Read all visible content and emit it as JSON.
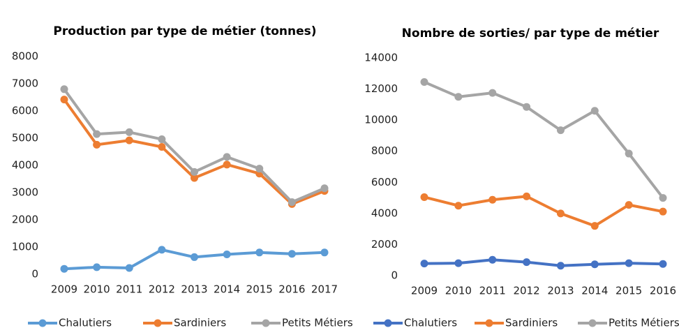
{
  "chart_data": [
    {
      "type": "line",
      "title": "Production par type de métier (tonnes)",
      "categories": [
        "2009",
        "2010",
        "2011",
        "2012",
        "2013",
        "2014",
        "2015",
        "2016",
        "2017"
      ],
      "series": [
        {
          "name": "Chalutiers",
          "color": "#5b9bd5",
          "values": [
            200,
            260,
            230,
            900,
            630,
            730,
            800,
            750,
            800
          ]
        },
        {
          "name": "Sardiniers",
          "color": "#ed7d31",
          "values": [
            6420,
            4760,
            4920,
            4680,
            3540,
            4030,
            3700,
            2580,
            3060
          ]
        },
        {
          "name": "Petits Métiers",
          "color": "#a5a5a5",
          "values": [
            6800,
            5150,
            5220,
            4960,
            3760,
            4310,
            3880,
            2650,
            3160
          ]
        }
      ],
      "ylim": [
        0,
        8000
      ],
      "yticks": [
        0,
        1000,
        2000,
        3000,
        4000,
        5000,
        6000,
        7000,
        8000
      ],
      "grid": false,
      "legend": "bottom"
    },
    {
      "type": "line",
      "title": "Nombre de sorties/ par type de métier",
      "categories": [
        "2009",
        "2010",
        "2011",
        "2012",
        "2013",
        "2014",
        "2015",
        "2016"
      ],
      "series": [
        {
          "name": "Chalutiers",
          "color": "#4472c4",
          "values": [
            780,
            800,
            1020,
            870,
            640,
            730,
            800,
            750
          ]
        },
        {
          "name": "Sardiniers",
          "color": "#ed7d31",
          "values": [
            5050,
            4500,
            4880,
            5100,
            4000,
            3200,
            4550,
            4120
          ]
        },
        {
          "name": "Petits Métiers",
          "color": "#a5a5a5",
          "values": [
            12450,
            11500,
            11750,
            10850,
            9350,
            10600,
            7850,
            5000
          ]
        }
      ],
      "ylim": [
        0,
        14000
      ],
      "yticks": [
        0,
        2000,
        4000,
        6000,
        8000,
        10000,
        12000,
        14000
      ],
      "grid": false,
      "legend": "bottom"
    }
  ]
}
